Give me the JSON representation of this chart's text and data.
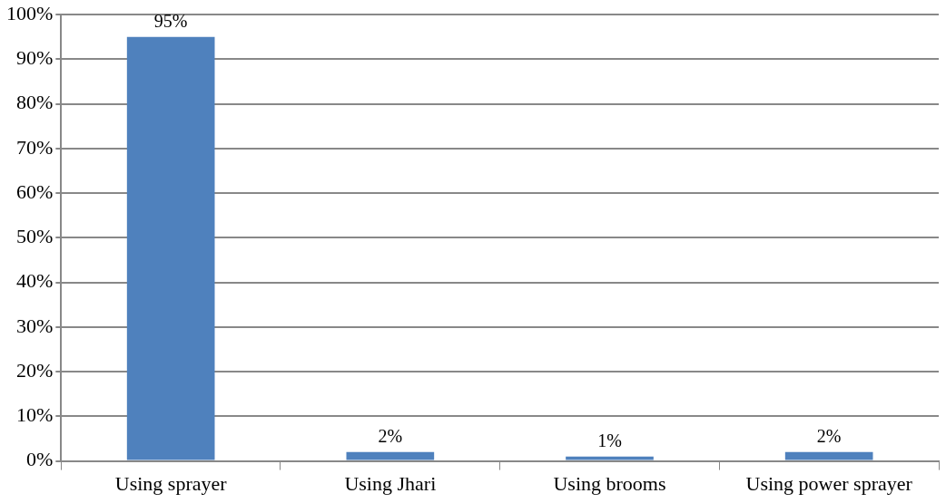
{
  "chart_data": {
    "type": "bar",
    "categories": [
      "Using sprayer",
      "Using Jhari",
      "Using brooms",
      "Using power sprayer"
    ],
    "values": [
      95,
      2,
      1,
      2
    ],
    "color": "#4f81bd",
    "value_labels": [
      "95%",
      "2%",
      "1%",
      "2%"
    ],
    "ylim": [
      0,
      100
    ],
    "yticks": [
      {
        "value": 0,
        "label": "0%"
      },
      {
        "value": 10,
        "label": "10%"
      },
      {
        "value": 20,
        "label": "20%"
      },
      {
        "value": 30,
        "label": "30%"
      },
      {
        "value": 40,
        "label": "40%"
      },
      {
        "value": 50,
        "label": "50%"
      },
      {
        "value": 60,
        "label": "60%"
      },
      {
        "value": 70,
        "label": "70%"
      },
      {
        "value": 80,
        "label": "80%"
      },
      {
        "value": 90,
        "label": "90%"
      },
      {
        "value": 100,
        "label": "100%"
      }
    ],
    "grid": "y",
    "legend": false
  }
}
